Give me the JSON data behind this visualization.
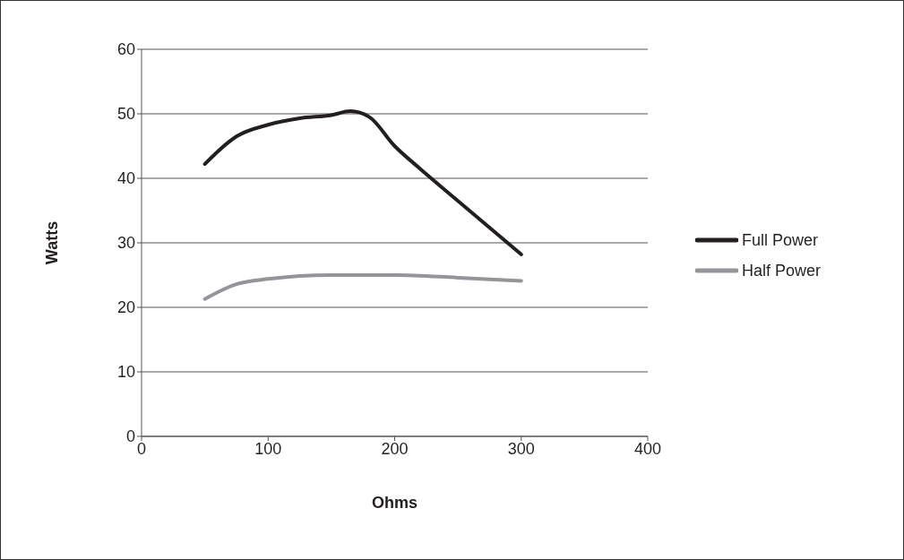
{
  "chart_data": {
    "type": "line",
    "xlabel": "Ohms",
    "ylabel": "Watts",
    "series": [
      {
        "name": "Full Power",
        "color": "#231f20",
        "x": [
          50,
          75,
          100,
          125,
          150,
          165,
          180,
          200,
          220,
          250,
          300
        ],
        "values": [
          42.2,
          46.5,
          48.3,
          49.3,
          49.8,
          50.4,
          49.5,
          45,
          41.5,
          36.5,
          28.2
        ]
      },
      {
        "name": "Half Power",
        "color": "#939598",
        "x": [
          50,
          75,
          100,
          150,
          200,
          250,
          300
        ],
        "values": [
          21.3,
          23.6,
          24.4,
          25,
          25,
          24.6,
          24.1
        ]
      }
    ],
    "xlim": [
      0,
      400
    ],
    "xticks": [
      0,
      100,
      200,
      300,
      400
    ],
    "ylim": [
      0,
      60
    ],
    "yticks": [
      0,
      10,
      20,
      30,
      40,
      50,
      60
    ],
    "grid": "y",
    "legend": "right",
    "marker": "none",
    "line_style": "solid"
  }
}
